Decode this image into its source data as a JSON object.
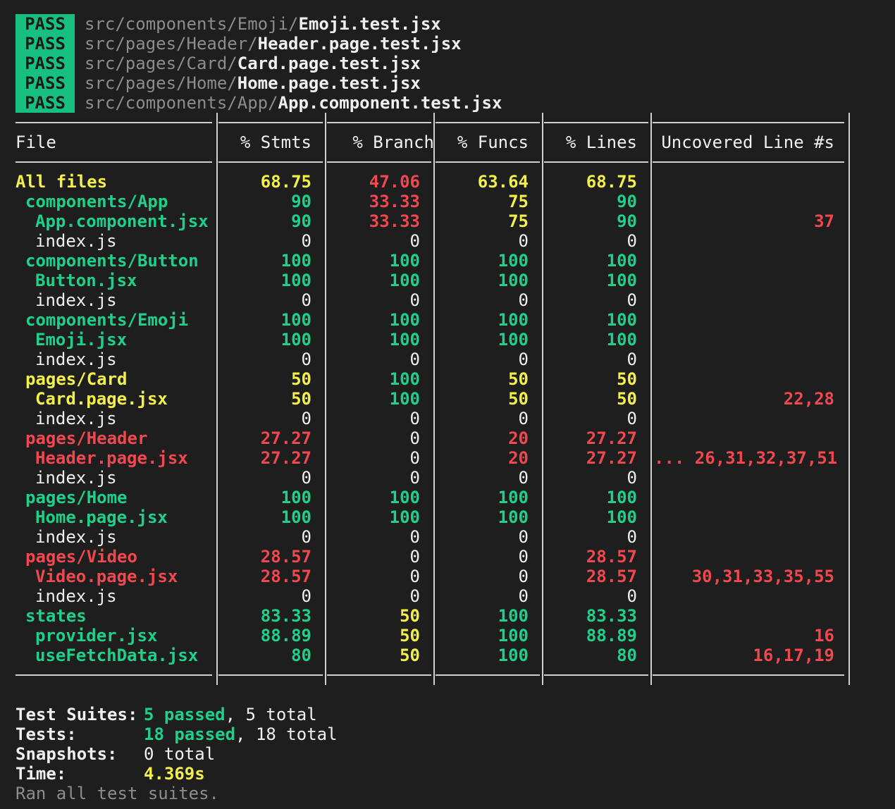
{
  "pass_lines": [
    {
      "badge": "PASS",
      "dir": "src/components/Emoji/",
      "file": "Emoji.test.jsx"
    },
    {
      "badge": "PASS",
      "dir": "src/pages/Header/",
      "file": "Header.page.test.jsx"
    },
    {
      "badge": "PASS",
      "dir": "src/pages/Card/",
      "file": "Card.page.test.jsx"
    },
    {
      "badge": "PASS",
      "dir": "src/pages/Home/",
      "file": "Home.page.test.jsx"
    },
    {
      "badge": "PASS",
      "dir": "src/components/App/",
      "file": "App.component.test.jsx"
    }
  ],
  "coverage_header": [
    "File",
    "% Stmts",
    "% Branch",
    "% Funcs",
    "% Lines",
    "Uncovered Line #s"
  ],
  "coverage_rows": [
    {
      "file": "All files",
      "indent": 0,
      "stmts": "68.75",
      "branch": "47.06",
      "funcs": "63.64",
      "lines": "68.75",
      "uncovered": ""
    },
    {
      "file": "components/App",
      "indent": 1,
      "stmts": "90",
      "branch": "33.33",
      "funcs": "75",
      "lines": "90",
      "uncovered": ""
    },
    {
      "file": "App.component.jsx",
      "indent": 2,
      "stmts": "90",
      "branch": "33.33",
      "funcs": "75",
      "lines": "90",
      "uncovered": "37"
    },
    {
      "file": "index.js",
      "indent": 2,
      "stmts": "0",
      "branch": "0",
      "funcs": "0",
      "lines": "0",
      "uncovered": ""
    },
    {
      "file": "components/Button",
      "indent": 1,
      "stmts": "100",
      "branch": "100",
      "funcs": "100",
      "lines": "100",
      "uncovered": ""
    },
    {
      "file": "Button.jsx",
      "indent": 2,
      "stmts": "100",
      "branch": "100",
      "funcs": "100",
      "lines": "100",
      "uncovered": ""
    },
    {
      "file": "index.js",
      "indent": 2,
      "stmts": "0",
      "branch": "0",
      "funcs": "0",
      "lines": "0",
      "uncovered": ""
    },
    {
      "file": "components/Emoji",
      "indent": 1,
      "stmts": "100",
      "branch": "100",
      "funcs": "100",
      "lines": "100",
      "uncovered": ""
    },
    {
      "file": "Emoji.jsx",
      "indent": 2,
      "stmts": "100",
      "branch": "100",
      "funcs": "100",
      "lines": "100",
      "uncovered": ""
    },
    {
      "file": "index.js",
      "indent": 2,
      "stmts": "0",
      "branch": "0",
      "funcs": "0",
      "lines": "0",
      "uncovered": ""
    },
    {
      "file": "pages/Card",
      "indent": 1,
      "stmts": "50",
      "branch": "100",
      "funcs": "50",
      "lines": "50",
      "uncovered": ""
    },
    {
      "file": "Card.page.jsx",
      "indent": 2,
      "stmts": "50",
      "branch": "100",
      "funcs": "50",
      "lines": "50",
      "uncovered": "22,28"
    },
    {
      "file": "index.js",
      "indent": 2,
      "stmts": "0",
      "branch": "0",
      "funcs": "0",
      "lines": "0",
      "uncovered": ""
    },
    {
      "file": "pages/Header",
      "indent": 1,
      "stmts": "27.27",
      "branch": "0",
      "funcs": "20",
      "lines": "27.27",
      "uncovered": ""
    },
    {
      "file": "Header.page.jsx",
      "indent": 2,
      "stmts": "27.27",
      "branch": "0",
      "funcs": "20",
      "lines": "27.27",
      "uncovered": "... 26,31,32,37,51"
    },
    {
      "file": "index.js",
      "indent": 2,
      "stmts": "0",
      "branch": "0",
      "funcs": "0",
      "lines": "0",
      "uncovered": ""
    },
    {
      "file": "pages/Home",
      "indent": 1,
      "stmts": "100",
      "branch": "100",
      "funcs": "100",
      "lines": "100",
      "uncovered": ""
    },
    {
      "file": "Home.page.jsx",
      "indent": 2,
      "stmts": "100",
      "branch": "100",
      "funcs": "100",
      "lines": "100",
      "uncovered": ""
    },
    {
      "file": "index.js",
      "indent": 2,
      "stmts": "0",
      "branch": "0",
      "funcs": "0",
      "lines": "0",
      "uncovered": ""
    },
    {
      "file": "pages/Video",
      "indent": 1,
      "stmts": "28.57",
      "branch": "0",
      "funcs": "0",
      "lines": "28.57",
      "uncovered": ""
    },
    {
      "file": "Video.page.jsx",
      "indent": 2,
      "stmts": "28.57",
      "branch": "0",
      "funcs": "0",
      "lines": "28.57",
      "uncovered": "30,31,33,35,55"
    },
    {
      "file": "index.js",
      "indent": 2,
      "stmts": "0",
      "branch": "0",
      "funcs": "0",
      "lines": "0",
      "uncovered": ""
    },
    {
      "file": "states",
      "indent": 1,
      "stmts": "83.33",
      "branch": "50",
      "funcs": "100",
      "lines": "83.33",
      "uncovered": ""
    },
    {
      "file": "provider.jsx",
      "indent": 2,
      "stmts": "88.89",
      "branch": "50",
      "funcs": "100",
      "lines": "88.89",
      "uncovered": "16"
    },
    {
      "file": "useFetchData.jsx",
      "indent": 2,
      "stmts": "80",
      "branch": "50",
      "funcs": "100",
      "lines": "80",
      "uncovered": "16,17,19"
    }
  ],
  "summary": {
    "suites_label": "Test Suites:",
    "suites_passed": "5 passed",
    "suites_total": "5 total",
    "tests_label": "Tests:",
    "tests_passed": "18 passed",
    "tests_total": "18 total",
    "snapshots_label": "Snapshots:",
    "snapshots_total": "0 total",
    "time_label": "Time:",
    "time_value": "4.369s",
    "footer": "Ran all test suites."
  },
  "colors": {
    "green": "#1fd08a",
    "yellow": "#f4f04a",
    "red": "#f0484e",
    "badge_bg": "#17bf80"
  }
}
